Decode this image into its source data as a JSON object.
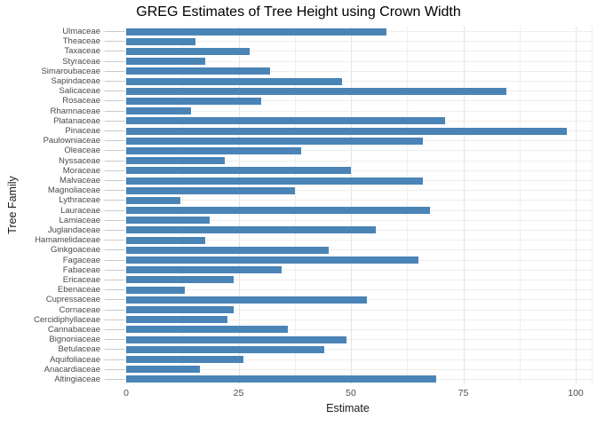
{
  "page": {
    "background": "#ffffff"
  },
  "chart_data": {
    "type": "bar",
    "orientation": "horizontal",
    "title": "GREG Estimates of Tree Height using Crown Width",
    "xlabel": "Estimate",
    "ylabel": "Tree Family",
    "xlim": [
      0,
      104
    ],
    "x_ticks": [
      0,
      25,
      50,
      75,
      100
    ],
    "x_minor_gridlines": [
      12.5,
      37.5,
      62.5,
      87.5
    ],
    "grid": "on",
    "legend": "none",
    "categories": [
      "Ulmaceae",
      "Theaceae",
      "Taxaceae",
      "Styraceae",
      "Simaroubaceae",
      "Sapindaceae",
      "Salicaceae",
      "Rosaceae",
      "Rhamnaceae",
      "Platanaceae",
      "Pinaceae",
      "Paulowniaceae",
      "Oleaceae",
      "Nyssaceae",
      "Moraceae",
      "Malvaceae",
      "Magnoliaceae",
      "Lythraceae",
      "Lauraceae",
      "Lamiaceae",
      "Juglandaceae",
      "Hamamelidaceae",
      "Ginkgoaceae",
      "Fagaceae",
      "Fabaceae",
      "Ericaceae",
      "Ebenaceae",
      "Cupressaceae",
      "Cornaceae",
      "Cercidiphyllaceae",
      "Cannabaceae",
      "Bignoniaceae",
      "Betulaceae",
      "Aquifoliaceae",
      "Anacardiaceae",
      "Altingiaceae"
    ],
    "values": [
      58,
      15.5,
      27.5,
      17.5,
      32,
      48,
      84.5,
      30,
      14.5,
      71,
      98,
      66,
      39,
      22,
      50,
      66,
      37.5,
      12,
      67.5,
      18.5,
      55.5,
      17.5,
      45,
      65,
      34.5,
      24,
      13,
      53.5,
      24,
      22.5,
      36,
      49,
      44,
      26,
      16.5,
      69
    ]
  },
  "style": {
    "bar_color": "#4a84b6",
    "grid_major_color": "#e4e4e4",
    "grid_minor_color": "#efefef",
    "row_gridline_color": "#ededed",
    "axis_tick_color": "#c9c9c9",
    "tick_label_color": "#4d4d4d",
    "axis_title_color": "#1a1a1a",
    "title_color": "#000000"
  }
}
